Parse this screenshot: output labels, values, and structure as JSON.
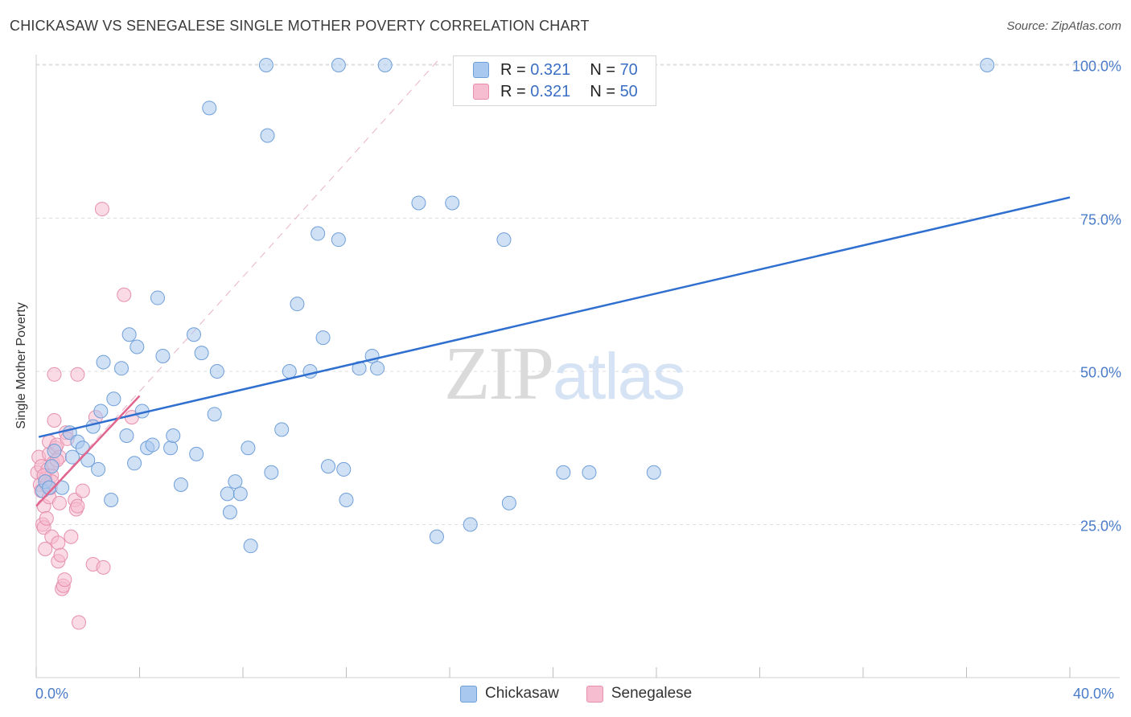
{
  "header": {
    "title": "CHICKASAW VS SENEGALESE SINGLE MOTHER POVERTY CORRELATION CHART",
    "source": "Source: ZipAtlas.com"
  },
  "watermark": {
    "zip": "ZIP",
    "atlas": "atlas"
  },
  "legend_top": {
    "rows": [
      {
        "r_label": "R = ",
        "r_value": "0.321",
        "n_label": "N = ",
        "n_value": "70"
      },
      {
        "r_label": "R = ",
        "r_value": "0.321",
        "n_label": "N = ",
        "n_value": "50"
      }
    ]
  },
  "legend_bottom": [
    "Chickasaw",
    "Senegalese"
  ],
  "colors": {
    "chickasaw_fill": "#a9c8ef",
    "chickasaw_stroke": "#6f9fd8",
    "chickasaw_line": "#2f6fcf",
    "senegalese_fill": "#f6bcd0",
    "senegalese_stroke": "#e690ae",
    "senegalese_line": "#e0668f",
    "grid": "#dddddd",
    "tick_label": "#4a7cc9"
  },
  "chart_data": {
    "type": "scatter",
    "title": "CHICKASAW VS SENEGALESE SINGLE MOTHER POVERTY CORRELATION CHART",
    "xlabel": "",
    "ylabel": "Single Mother Poverty",
    "xlim": [
      0,
      40
    ],
    "ylim": [
      0,
      104
    ],
    "x_tick_labels": [
      "0.0%",
      "40.0%"
    ],
    "y_ticks": [
      25,
      50,
      75,
      100
    ],
    "y_tick_labels": [
      "25.0%",
      "50.0%",
      "75.0%",
      "100.0%"
    ],
    "grid": true,
    "series": [
      {
        "name": "Chickasaw",
        "R": 0.321,
        "N": 70,
        "trend": {
          "x": [
            0.1,
            40.0
          ],
          "y": [
            39.3,
            78.4
          ]
        },
        "points": [
          [
            0.25,
            30.5
          ],
          [
            0.35,
            32.0
          ],
          [
            0.5,
            31.0
          ],
          [
            0.6,
            34.5
          ],
          [
            0.7,
            37.0
          ],
          [
            1.0,
            31.0
          ],
          [
            1.3,
            40.0
          ],
          [
            1.4,
            36.0
          ],
          [
            1.6,
            38.5
          ],
          [
            1.8,
            37.5
          ],
          [
            2.0,
            35.5
          ],
          [
            2.2,
            41.0
          ],
          [
            2.4,
            34.0
          ],
          [
            2.5,
            43.5
          ],
          [
            2.6,
            51.5
          ],
          [
            2.9,
            29.0
          ],
          [
            3.0,
            45.5
          ],
          [
            3.3,
            50.5
          ],
          [
            3.5,
            39.5
          ],
          [
            3.6,
            56.0
          ],
          [
            3.8,
            35.0
          ],
          [
            3.9,
            54.0
          ],
          [
            4.1,
            43.5
          ],
          [
            4.3,
            37.5
          ],
          [
            4.5,
            38.0
          ],
          [
            4.7,
            62.0
          ],
          [
            4.9,
            52.5
          ],
          [
            5.2,
            37.5
          ],
          [
            5.3,
            39.5
          ],
          [
            5.6,
            31.5
          ],
          [
            6.1,
            56.0
          ],
          [
            6.2,
            36.5
          ],
          [
            6.4,
            53.0
          ],
          [
            6.7,
            93.0
          ],
          [
            6.9,
            43.0
          ],
          [
            7.0,
            50.0
          ],
          [
            7.4,
            30.0
          ],
          [
            7.5,
            27.0
          ],
          [
            7.7,
            32.0
          ],
          [
            7.9,
            30.0
          ],
          [
            8.2,
            37.5
          ],
          [
            8.3,
            21.5
          ],
          [
            8.9,
            100.0
          ],
          [
            8.95,
            88.5
          ],
          [
            9.1,
            33.5
          ],
          [
            9.5,
            40.5
          ],
          [
            9.8,
            50.0
          ],
          [
            10.1,
            61.0
          ],
          [
            10.6,
            50.0
          ],
          [
            10.9,
            72.5
          ],
          [
            11.1,
            55.5
          ],
          [
            11.3,
            34.5
          ],
          [
            11.7,
            100.0
          ],
          [
            11.7,
            71.5
          ],
          [
            11.9,
            34.0
          ],
          [
            12.0,
            29.0
          ],
          [
            12.5,
            50.5
          ],
          [
            13.0,
            52.5
          ],
          [
            13.2,
            50.5
          ],
          [
            13.5,
            100.0
          ],
          [
            14.8,
            77.5
          ],
          [
            15.5,
            23.0
          ],
          [
            16.1,
            77.5
          ],
          [
            16.8,
            25.0
          ],
          [
            18.1,
            71.5
          ],
          [
            18.3,
            28.5
          ],
          [
            20.4,
            33.5
          ],
          [
            21.4,
            33.5
          ],
          [
            23.9,
            33.5
          ],
          [
            36.8,
            100.0
          ]
        ]
      },
      {
        "name": "Senegalese",
        "R": 0.321,
        "N": 50,
        "trend": {
          "x": [
            0.0,
            4.0
          ],
          "y": [
            28.0,
            46.0
          ]
        },
        "reference_diagonal": {
          "x": [
            0.0,
            15.6
          ],
          "y": [
            28.0,
            101.0
          ]
        },
        "points": [
          [
            0.05,
            33.5
          ],
          [
            0.1,
            36.0
          ],
          [
            0.15,
            31.5
          ],
          [
            0.2,
            34.5
          ],
          [
            0.2,
            30.5
          ],
          [
            0.25,
            25.0
          ],
          [
            0.3,
            24.5
          ],
          [
            0.3,
            28.0
          ],
          [
            0.35,
            21.0
          ],
          [
            0.35,
            32.5
          ],
          [
            0.4,
            26.0
          ],
          [
            0.45,
            34.0
          ],
          [
            0.5,
            36.5
          ],
          [
            0.5,
            29.5
          ],
          [
            0.5,
            38.5
          ],
          [
            0.55,
            31.0
          ],
          [
            0.6,
            33.0
          ],
          [
            0.6,
            23.0
          ],
          [
            0.65,
            35.0
          ],
          [
            0.7,
            42.0
          ],
          [
            0.7,
            49.5
          ],
          [
            0.75,
            37.5
          ],
          [
            0.8,
            38.0
          ],
          [
            0.85,
            22.0
          ],
          [
            0.85,
            19.0
          ],
          [
            0.9,
            36.0
          ],
          [
            0.9,
            28.5
          ],
          [
            0.95,
            20.0
          ],
          [
            1.0,
            14.5
          ],
          [
            1.05,
            15.0
          ],
          [
            1.1,
            16.0
          ],
          [
            1.15,
            40.0
          ],
          [
            1.2,
            39.0
          ],
          [
            1.35,
            23.0
          ],
          [
            1.5,
            29.0
          ],
          [
            1.55,
            27.5
          ],
          [
            1.6,
            28.0
          ],
          [
            1.6,
            49.5
          ],
          [
            1.65,
            9.0
          ],
          [
            1.8,
            30.5
          ],
          [
            2.2,
            18.5
          ],
          [
            2.3,
            42.5
          ],
          [
            2.6,
            18.0
          ],
          [
            2.55,
            76.5
          ],
          [
            3.4,
            62.5
          ],
          [
            3.7,
            42.5
          ],
          [
            0.4,
            31.5
          ],
          [
            0.6,
            32.0
          ],
          [
            0.8,
            35.5
          ],
          [
            0.3,
            33.0
          ]
        ]
      }
    ]
  }
}
